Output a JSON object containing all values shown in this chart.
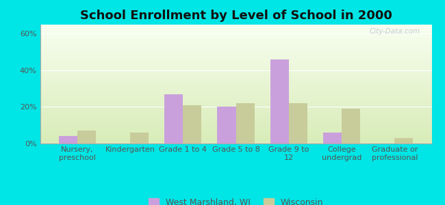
{
  "title": "School Enrollment by Level of School in 2000",
  "categories": [
    "Nursery,\npreschool",
    "Kindergarten",
    "Grade 1 to 4",
    "Grade 5 to 8",
    "Grade 9 to\n12",
    "College\nundergrad",
    "Graduate or\nprofessional"
  ],
  "west_marshland": [
    4,
    0,
    27,
    20,
    46,
    6,
    0
  ],
  "wisconsin": [
    7,
    6,
    21,
    22,
    22,
    19,
    3
  ],
  "bar_color_wm": "#c9a0dc",
  "bar_color_wi": "#c8cc9a",
  "background_outer": "#00e5e5",
  "ylim": [
    0,
    65
  ],
  "yticks": [
    0,
    20,
    40,
    60
  ],
  "ytick_labels": [
    "0%",
    "20%",
    "40%",
    "60%"
  ],
  "legend_label_wm": "West Marshland, WI",
  "legend_label_wi": "Wisconsin",
  "bar_width": 0.35,
  "title_fontsize": 13,
  "tick_fontsize": 8,
  "legend_fontsize": 9,
  "watermark": "City-Data.com"
}
